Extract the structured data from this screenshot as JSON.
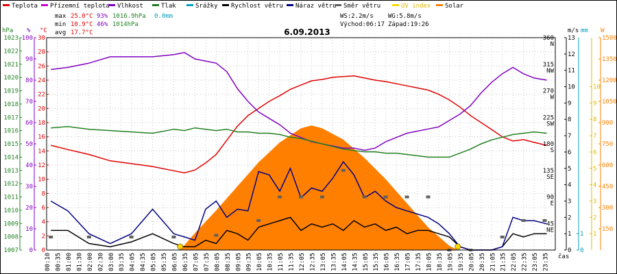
{
  "title": "6.09.2013",
  "legend": [
    {
      "label": "Teplota",
      "color": "#e00000"
    },
    {
      "label": "Přízemní teplota",
      "color": "#cc00cc"
    },
    {
      "label": "Vlhkost",
      "color": "#8000c0"
    },
    {
      "label": "Tlak",
      "color": "#208020"
    },
    {
      "label": "Srážky",
      "color": "#00a0c0"
    },
    {
      "label": "Rychlost větru",
      "color": "#000000"
    },
    {
      "label": "Náraz větru",
      "color": "#000080"
    },
    {
      "label": "Směr větru",
      "color": "#606060"
    },
    {
      "label": "UV index",
      "color": "#ffd800"
    },
    {
      "label": "Solar",
      "color": "#ff8000"
    }
  ],
  "stats": {
    "max_label": "max",
    "max_temp": "25.0°C",
    "max_hum": "93%",
    "max_press": "1016.9hPa",
    "rain": "0.0mm",
    "min_label": "min",
    "min_temp": "10.9°C",
    "min_hum": "46%",
    "min_press": "1014hPa",
    "avg_label": "avg",
    "avg_temp": "17.7°C"
  },
  "wind_info": {
    "ws": "WS:2.2m/s",
    "wg": "WG:5.8m/s",
    "sunrise": "Východ:06:17",
    "sunset": "Západ:19:26"
  },
  "axes": {
    "hpa": {
      "unit": "hPa",
      "color": "#208020",
      "ticks": [
        1007,
        1008,
        1009,
        1010,
        1011,
        1012,
        1013,
        1014,
        1015,
        1016,
        1017,
        1018,
        1019,
        1020,
        1021,
        1022,
        1023
      ]
    },
    "pct": {
      "unit": "%",
      "color": "#8000c0",
      "ticks": [
        0,
        10,
        20,
        30,
        40,
        50,
        60,
        70,
        80,
        90,
        100
      ]
    },
    "temp": {
      "unit": "°C",
      "color": "#e00000",
      "ticks": [
        0,
        2,
        4,
        6,
        8,
        10,
        12,
        14,
        16,
        18,
        20,
        22,
        24,
        26,
        28,
        30
      ]
    },
    "ms": {
      "unit": "m/s",
      "color": "#000000",
      "ticks": [
        0,
        1,
        2,
        3,
        4,
        5,
        6,
        7,
        8,
        9,
        10,
        11,
        12,
        13
      ]
    },
    "mm": {
      "unit": "mm",
      "color": "#00a0c0",
      "ticks": [
        0,
        1
      ]
    },
    "w": {
      "unit": "W",
      "color": "#ff8000",
      "ticks": [
        150,
        300,
        450,
        600,
        750,
        900,
        1050,
        1200,
        1350,
        1500
      ]
    },
    "uv": {
      "color": "#ffd800",
      "ticks": [
        1,
        2,
        3,
        4,
        5,
        6,
        7,
        8,
        9,
        10
      ]
    },
    "dir": {
      "ticks": [
        {
          "deg": 45,
          "label": "45",
          "name": "NE"
        },
        {
          "deg": 90,
          "label": "90",
          "name": "E"
        },
        {
          "deg": 135,
          "label": "135",
          "name": "SE"
        },
        {
          "deg": 180,
          "label": "180",
          "name": "S"
        },
        {
          "deg": 225,
          "label": "225",
          "name": "SW"
        },
        {
          "deg": 270,
          "label": "270",
          "name": "W"
        },
        {
          "deg": 315,
          "label": "315",
          "name": "NW"
        },
        {
          "deg": 360,
          "label": "360",
          "name": "N"
        }
      ]
    },
    "time_label": "čas",
    "time_ticks": [
      "00:10",
      "00:35",
      "01:00",
      "01:30",
      "02:00",
      "02:30",
      "03:00",
      "03:35",
      "04:05",
      "04:35",
      "05:05",
      "05:35",
      "06:05",
      "06:35",
      "07:05",
      "07:35",
      "08:05",
      "08:35",
      "09:05",
      "09:35",
      "10:05",
      "10:35",
      "11:05",
      "11:35",
      "12:05",
      "12:35",
      "13:05",
      "13:35",
      "14:05",
      "14:35",
      "15:05",
      "15:35",
      "16:05",
      "16:35",
      "17:05",
      "17:35",
      "18:05",
      "18:35",
      "19:05",
      "19:35",
      "20:05",
      "20:35",
      "21:05",
      "21:35",
      "22:05",
      "22:35",
      "23:05",
      "23:35"
    ]
  },
  "chart_data": {
    "type": "line",
    "title": "6.09.2013",
    "x_unit": "hour",
    "series": [
      {
        "name": "Teplota",
        "unit": "°C",
        "color": "#e00000",
        "x": [
          0.2,
          1,
          2,
          3,
          4,
          5,
          6,
          6.5,
          7,
          7.5,
          8,
          8.5,
          9,
          9.5,
          10,
          10.5,
          11,
          11.5,
          12,
          12.5,
          13,
          13.5,
          14,
          14.5,
          15,
          15.5,
          16,
          16.5,
          17,
          17.5,
          18,
          18.5,
          19,
          19.5,
          20,
          20.5,
          21,
          21.5,
          22,
          22.5,
          23,
          23.6
        ],
        "y": [
          14.8,
          14.2,
          13.5,
          12.6,
          12.2,
          11.8,
          11.2,
          10.9,
          11.3,
          12.3,
          13.5,
          15.5,
          17.5,
          19.0,
          20.0,
          21.0,
          21.8,
          22.7,
          23.3,
          23.9,
          24.1,
          24.4,
          24.5,
          24.6,
          24.3,
          24.0,
          23.8,
          23.5,
          23.2,
          22.9,
          22.6,
          22.0,
          21.2,
          20.2,
          19.0,
          18.0,
          17.0,
          16.0,
          15.4,
          15.6,
          15.2,
          14.8
        ]
      },
      {
        "name": "Vlhkost",
        "unit": "%",
        "color": "#8000c0",
        "x": [
          0.2,
          1,
          2,
          3,
          4,
          5,
          6,
          6.5,
          7,
          7.5,
          8,
          8.5,
          9,
          9.5,
          10,
          10.5,
          11,
          11.5,
          12,
          12.5,
          13,
          13.5,
          14,
          14.5,
          15,
          15.5,
          16,
          16.5,
          17,
          17.5,
          18,
          18.5,
          19,
          19.5,
          20,
          20.5,
          21,
          21.5,
          22,
          22.5,
          23,
          23.6
        ],
        "y": [
          85,
          86,
          88,
          91,
          91,
          91,
          92,
          93,
          90,
          89,
          88,
          84,
          76,
          70,
          65,
          62,
          59,
          55,
          53,
          51,
          50,
          49,
          48,
          48,
          47,
          48,
          51,
          53,
          55,
          56,
          57,
          58,
          61,
          64,
          68,
          74,
          79,
          83,
          86,
          83,
          81,
          80
        ]
      },
      {
        "name": "Tlak",
        "unit": "hPa",
        "color": "#208020",
        "x": [
          0.2,
          1,
          2,
          3,
          4,
          5,
          6,
          6.5,
          7,
          7.5,
          8,
          8.5,
          9,
          9.5,
          10,
          10.5,
          11,
          11.5,
          12,
          12.5,
          13,
          13.5,
          14,
          14.5,
          15,
          15.5,
          16,
          16.5,
          17,
          17.5,
          18,
          18.5,
          19,
          19.5,
          20,
          20.5,
          21,
          21.5,
          22,
          22.5,
          23,
          23.6
        ],
        "y": [
          1016.2,
          1016.3,
          1016.1,
          1016.0,
          1015.9,
          1015.8,
          1016.1,
          1016.0,
          1016.2,
          1016.1,
          1016.0,
          1016.1,
          1015.9,
          1015.9,
          1015.8,
          1015.8,
          1015.7,
          1015.5,
          1015.4,
          1015.2,
          1015.0,
          1014.8,
          1014.6,
          1014.5,
          1014.4,
          1014.4,
          1014.3,
          1014.3,
          1014.2,
          1014.1,
          1014.0,
          1014.0,
          1014.0,
          1014.3,
          1014.6,
          1015.0,
          1015.3,
          1015.5,
          1015.7,
          1015.8,
          1015.9,
          1015.8
        ]
      },
      {
        "name": "Rychlost větru",
        "unit": "m/s",
        "color": "#000000",
        "x": [
          0.2,
          1,
          2,
          3,
          4,
          5,
          6,
          6.5,
          7,
          7.5,
          8,
          8.5,
          9,
          9.5,
          10,
          10.5,
          11,
          11.5,
          12,
          12.5,
          13,
          13.5,
          14,
          14.5,
          15,
          15.5,
          16,
          16.5,
          17,
          17.5,
          18,
          18.5,
          19,
          19.5,
          20,
          20.5,
          21,
          21.5,
          22,
          22.5,
          23,
          23.6
        ],
        "y": [
          1.2,
          1.2,
          0.4,
          0.2,
          0.5,
          1.0,
          0.4,
          0.2,
          0.2,
          0.6,
          0.4,
          1.2,
          1.0,
          0.6,
          1.4,
          1.6,
          1.8,
          2.0,
          1.2,
          1.6,
          1.4,
          1.6,
          1.2,
          1.8,
          1.4,
          1.6,
          1.2,
          1.4,
          1.0,
          1.2,
          1.2,
          1.0,
          0.8,
          0.2,
          0.0,
          0.0,
          0.0,
          0.2,
          1.0,
          0.8,
          1.0,
          1.0
        ]
      },
      {
        "name": "Náraz větru",
        "unit": "m/s",
        "color": "#000080",
        "x": [
          0.2,
          1,
          2,
          3,
          4,
          5,
          6,
          6.5,
          7,
          7.5,
          8,
          8.5,
          9,
          9.5,
          10,
          10.5,
          11,
          11.5,
          12,
          12.5,
          13,
          13.5,
          14,
          14.5,
          15,
          15.5,
          16,
          16.5,
          17,
          17.5,
          18,
          18.5,
          19,
          19.5,
          20,
          20.5,
          21,
          21.5,
          22,
          22.5,
          23,
          23.6
        ],
        "y": [
          3.0,
          2.4,
          1.0,
          0.4,
          1.0,
          2.5,
          1.0,
          0.8,
          0.6,
          2.5,
          3.0,
          2.0,
          2.5,
          2.4,
          4.8,
          4.6,
          3.6,
          5.0,
          3.2,
          3.8,
          3.6,
          4.4,
          5.4,
          4.6,
          3.2,
          3.6,
          3.0,
          2.6,
          2.4,
          2.2,
          2.0,
          1.6,
          1.0,
          0.2,
          0.0,
          0.0,
          0.0,
          0.2,
          2.0,
          1.8,
          1.8,
          1.6
        ]
      },
      {
        "name": "Solar",
        "unit": "W",
        "color": "#ff8000",
        "x": [
          6.3,
          7,
          8,
          9,
          10,
          11,
          12,
          12.5,
          13,
          14,
          15,
          16,
          17,
          18,
          19,
          19.4
        ],
        "y": [
          0,
          120,
          280,
          450,
          620,
          760,
          860,
          880,
          860,
          780,
          650,
          500,
          330,
          160,
          30,
          0
        ]
      },
      {
        "name": "Směr větru",
        "unit": "°",
        "color": "#606060",
        "x": [
          0.2,
          2,
          4,
          6,
          8,
          10,
          11,
          12,
          13,
          14,
          15,
          16,
          17,
          18,
          19,
          20,
          21.5,
          22.5,
          23.5
        ],
        "y": [
          22,
          22,
          22,
          22,
          25,
          50,
          90,
          90,
          90,
          135,
          90,
          90,
          90,
          90,
          0,
          0,
          22,
          50,
          50
        ]
      }
    ],
    "markers": [
      {
        "name": "UV index",
        "x": [
          6.3,
          19.4
        ],
        "y": [
          0,
          0
        ],
        "color": "#ffd800"
      }
    ],
    "ranges": {
      "temp": [
        0,
        30
      ],
      "pct": [
        0,
        100
      ],
      "hpa": [
        1007,
        1023
      ],
      "ms": [
        0,
        13
      ],
      "w": [
        0,
        1500
      ],
      "dir": [
        0,
        360
      ],
      "x": [
        0,
        24
      ]
    }
  }
}
